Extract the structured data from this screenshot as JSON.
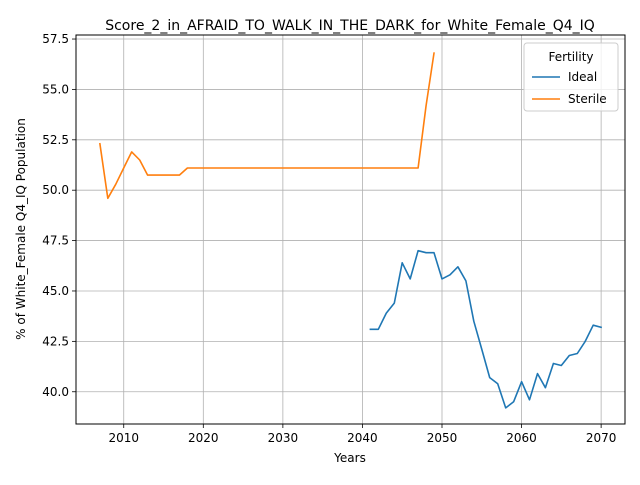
{
  "chart_data": {
    "type": "line",
    "title": "Score_2_in_AFRAID_TO_WALK_IN_THE_DARK_for_White_Female_Q4_IQ",
    "xlabel": "Years",
    "ylabel": "% of White_Female Q4_IQ Population",
    "xlim": [
      2004,
      2073
    ],
    "ylim": [
      38.4,
      57.7
    ],
    "xticks": [
      2010,
      2020,
      2030,
      2040,
      2050,
      2060,
      2070
    ],
    "yticks": [
      40.0,
      42.5,
      45.0,
      47.5,
      50.0,
      52.5,
      55.0,
      57.5
    ],
    "xtick_labels": [
      "2010",
      "2020",
      "2030",
      "2040",
      "2050",
      "2060",
      "2070"
    ],
    "ytick_labels": [
      "40.0",
      "42.5",
      "45.0",
      "47.5",
      "50.0",
      "52.5",
      "55.0",
      "57.5"
    ],
    "grid": true,
    "legend": {
      "title": "Fertility",
      "placement": "top-right"
    },
    "series": [
      {
        "name": "Ideal",
        "color": "#1f77b4",
        "x": [
          2041,
          2042,
          2043,
          2044,
          2045,
          2046,
          2047,
          2048,
          2049,
          2050,
          2051,
          2052,
          2053,
          2054,
          2055,
          2056,
          2057,
          2058,
          2059,
          2060,
          2061,
          2062,
          2063,
          2064,
          2065,
          2066,
          2067,
          2068,
          2069,
          2070
        ],
        "y": [
          43.1,
          43.1,
          43.9,
          44.4,
          46.4,
          45.6,
          47.0,
          46.9,
          46.9,
          45.6,
          45.8,
          46.2,
          45.5,
          43.5,
          42.1,
          40.7,
          40.4,
          39.2,
          39.5,
          40.5,
          39.6,
          40.9,
          40.2,
          41.4,
          41.3,
          41.8,
          41.9,
          42.5,
          43.3,
          43.2
        ]
      },
      {
        "name": "Sterile",
        "color": "#ff7f0e",
        "x": [
          2007,
          2008,
          2009,
          2010,
          2011,
          2012,
          2013,
          2014,
          2015,
          2016,
          2017,
          2018,
          2019,
          2020,
          2025,
          2030,
          2035,
          2040,
          2045,
          2046,
          2047,
          2048,
          2049
        ],
        "y": [
          52.3,
          49.6,
          50.3,
          51.1,
          51.9,
          51.5,
          50.75,
          50.75,
          50.75,
          50.75,
          50.75,
          51.1,
          51.1,
          51.1,
          51.1,
          51.1,
          51.1,
          51.1,
          51.1,
          51.1,
          51.1,
          54.2,
          56.8
        ]
      }
    ]
  }
}
